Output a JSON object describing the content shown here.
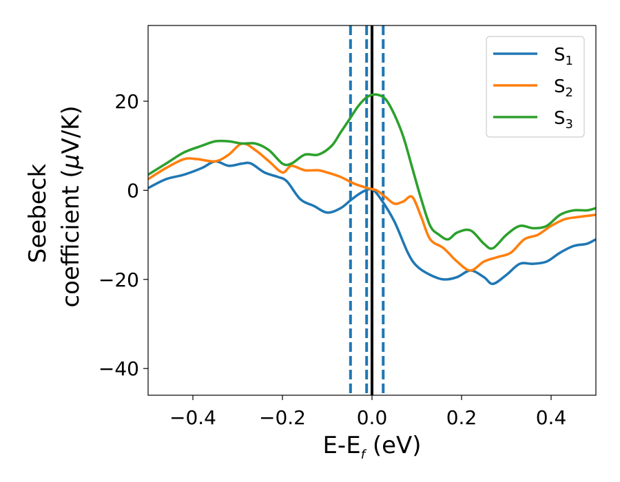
{
  "chart_data": {
    "type": "line",
    "xlabel": {
      "main": "E-E",
      "sub": "f",
      "suffix": " (eV)"
    },
    "ylabel": {
      "line1": "Seebeck",
      "line2_prefix": "coefficient  (",
      "mu": "μ",
      "line2_suffix": "V/K)"
    },
    "xlim": [
      -0.5,
      0.5
    ],
    "ylim": [
      -46,
      37
    ],
    "xticks": [
      -0.4,
      -0.2,
      0.0,
      0.2,
      0.4
    ],
    "xtick_labels": [
      "−0.4",
      "−0.2",
      "0.0",
      "0.2",
      "0.4"
    ],
    "yticks": [
      -40,
      -20,
      0,
      20
    ],
    "ytick_labels": [
      "−40",
      "−20",
      "0",
      "20"
    ],
    "grid": false,
    "legend_position": "top-right",
    "colors": {
      "S1": "#1f77b4",
      "S2": "#ff7f0e",
      "S3": "#2ca02c",
      "fermi": "#000000",
      "dashed": "#1f77b4"
    },
    "vertical_lines": {
      "solid": [
        0.0
      ],
      "dashed": [
        -0.048,
        -0.012,
        0.025
      ]
    },
    "series": [
      {
        "name": "S",
        "subscript": "1",
        "key": "S1",
        "x": [
          -0.5,
          -0.46,
          -0.42,
          -0.38,
          -0.35,
          -0.32,
          -0.29,
          -0.27,
          -0.24,
          -0.21,
          -0.19,
          -0.16,
          -0.13,
          -0.1,
          -0.07,
          -0.045,
          -0.02,
          0.0,
          0.02,
          0.05,
          0.08,
          0.1,
          0.13,
          0.16,
          0.19,
          0.22,
          0.25,
          0.27,
          0.3,
          0.33,
          0.36,
          0.39,
          0.42,
          0.45,
          0.48,
          0.5
        ],
        "y": [
          0.5,
          2.5,
          3.5,
          5,
          6.5,
          5.5,
          6,
          6,
          4,
          3,
          2,
          -2,
          -3.5,
          -5,
          -4,
          -2,
          -0.3,
          0.2,
          -2,
          -7,
          -14,
          -17,
          -19,
          -20,
          -19.5,
          -18,
          -19.5,
          -21,
          -19,
          -16.5,
          -16.5,
          -16,
          -14,
          -12.5,
          -12,
          -11
        ]
      },
      {
        "name": "S",
        "subscript": "2",
        "key": "S2",
        "x": [
          -0.5,
          -0.46,
          -0.42,
          -0.39,
          -0.35,
          -0.32,
          -0.29,
          -0.26,
          -0.23,
          -0.2,
          -0.18,
          -0.15,
          -0.12,
          -0.1,
          -0.07,
          -0.04,
          -0.01,
          0.01,
          0.03,
          0.05,
          0.07,
          0.09,
          0.11,
          0.13,
          0.16,
          0.19,
          0.22,
          0.25,
          0.28,
          0.31,
          0.34,
          0.37,
          0.4,
          0.43,
          0.46,
          0.5
        ],
        "y": [
          2.5,
          5,
          7,
          7,
          6.5,
          8,
          10.5,
          9,
          6.5,
          4,
          5.5,
          4.5,
          4.5,
          4,
          3,
          1.5,
          0.5,
          0,
          -1.5,
          -3,
          -2.5,
          -1.5,
          -6,
          -11,
          -13,
          -16,
          -18,
          -16,
          -15,
          -14,
          -11,
          -10,
          -8,
          -6.5,
          -6,
          -5.5
        ]
      },
      {
        "name": "S",
        "subscript": "3",
        "key": "S3",
        "x": [
          -0.5,
          -0.46,
          -0.42,
          -0.38,
          -0.35,
          -0.32,
          -0.29,
          -0.26,
          -0.23,
          -0.2,
          -0.18,
          -0.15,
          -0.12,
          -0.09,
          -0.07,
          -0.05,
          -0.03,
          -0.01,
          0.01,
          0.03,
          0.05,
          0.07,
          0.09,
          0.11,
          0.13,
          0.15,
          0.17,
          0.19,
          0.22,
          0.25,
          0.27,
          0.3,
          0.33,
          0.36,
          0.39,
          0.42,
          0.45,
          0.48,
          0.5
        ],
        "y": [
          3.5,
          6,
          8.5,
          10,
          11,
          11,
          10.5,
          10.5,
          9,
          6,
          6,
          8,
          8,
          10,
          13,
          16,
          19,
          21,
          21.5,
          20.5,
          17,
          12,
          5,
          -2,
          -8,
          -10,
          -11,
          -9.5,
          -9,
          -12,
          -13,
          -10,
          -8,
          -8.5,
          -8,
          -5.5,
          -4.5,
          -4.5,
          -4
        ]
      }
    ]
  }
}
